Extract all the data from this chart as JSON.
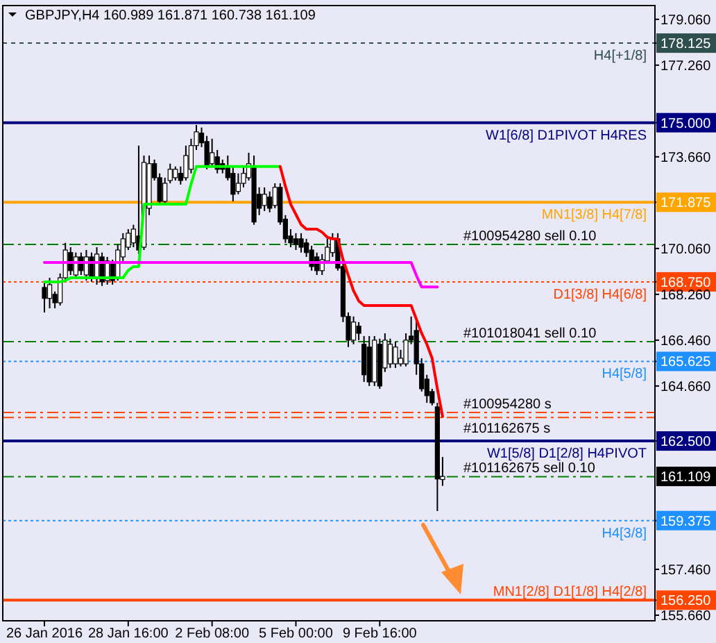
{
  "chart_data": {
    "type": "candlestick",
    "title": "GBPJPY,H4  160.989 161.871 160.738 161.109",
    "categories": [
      "26 Jan 2016",
      null,
      null,
      null,
      null,
      null,
      null,
      null,
      null,
      null,
      null,
      null,
      null,
      null,
      null,
      null,
      "28 Jan 16:00",
      null,
      null,
      null,
      null,
      null,
      null,
      null,
      null,
      null,
      null,
      null,
      null,
      null,
      null,
      null,
      "2 Feb 08:00",
      null,
      null,
      null,
      null,
      null,
      null,
      null,
      null,
      null,
      null,
      null,
      null,
      null,
      null,
      null,
      "5 Feb 00:00",
      null,
      null,
      null,
      null,
      null,
      null,
      null,
      null,
      null,
      null,
      null,
      null,
      null,
      null,
      null,
      "9 Feb 16:00",
      null,
      null,
      null,
      null,
      null,
      null,
      null,
      null,
      null,
      null,
      null,
      null,
      null,
      null,
      null,
      null,
      null,
      null,
      null,
      null,
      null,
      null,
      null,
      null,
      null,
      null,
      null,
      null,
      null,
      null,
      null,
      null,
      null,
      null,
      null,
      null,
      null,
      null,
      null,
      null,
      null,
      null,
      null,
      null,
      null,
      null,
      null,
      null,
      null,
      null,
      null,
      null
    ],
    "ohlc": [
      [
        168.53,
        168.75,
        167.55,
        168.1
      ],
      [
        168.1,
        168.91,
        167.71,
        168.64
      ],
      [
        168.26,
        168.37,
        167.71,
        167.93
      ],
      [
        167.93,
        169.08,
        167.82,
        168.91
      ],
      [
        168.91,
        170.28,
        168.8,
        170.0
      ],
      [
        169.9,
        170.11,
        169.02,
        169.19
      ],
      [
        169.02,
        169.9,
        168.91,
        169.73
      ],
      [
        169.73,
        169.9,
        169.02,
        169.19
      ],
      [
        169.02,
        170.0,
        168.8,
        169.73
      ],
      [
        169.73,
        169.9,
        168.75,
        168.91
      ],
      [
        168.91,
        170.11,
        168.64,
        169.84
      ],
      [
        169.73,
        169.9,
        168.59,
        168.75
      ],
      [
        168.8,
        169.73,
        168.64,
        169.57
      ],
      [
        169.46,
        169.62,
        168.64,
        168.8
      ],
      [
        168.91,
        170.22,
        168.8,
        170.0
      ],
      [
        169.73,
        170.66,
        169.57,
        170.44
      ],
      [
        170.11,
        170.82,
        170.0,
        170.66
      ],
      [
        170.28,
        170.99,
        170.11,
        170.82
      ],
      [
        170.55,
        174.1,
        169.84,
        170.0
      ],
      [
        170.11,
        173.71,
        170.0,
        173.44
      ],
      [
        171.64,
        173.71,
        171.37,
        173.39
      ],
      [
        173.39,
        173.55,
        172.73,
        172.84
      ],
      [
        172.84,
        173.01,
        171.75,
        171.91
      ],
      [
        171.91,
        172.84,
        171.75,
        172.62
      ],
      [
        172.73,
        173.39,
        172.62,
        173.17
      ],
      [
        172.84,
        173.28,
        172.73,
        173.17
      ],
      [
        173.01,
        173.28,
        172.57,
        172.73
      ],
      [
        172.84,
        174.1,
        172.73,
        173.71
      ],
      [
        173.17,
        174.37,
        173.01,
        174.1
      ],
      [
        174.1,
        174.91,
        173.93,
        174.64
      ],
      [
        174.59,
        174.81,
        174.04,
        174.21
      ],
      [
        174.26,
        174.48,
        173.17,
        173.28
      ],
      [
        173.39,
        174.37,
        173.28,
        173.82
      ],
      [
        173.66,
        173.93,
        173.01,
        173.17
      ],
      [
        173.39,
        173.55,
        173.01,
        173.17
      ],
      [
        173.28,
        173.71,
        172.73,
        172.84
      ],
      [
        173.01,
        173.28,
        171.91,
        172.19
      ],
      [
        172.3,
        173.01,
        172.19,
        172.62
      ],
      [
        172.62,
        173.28,
        172.46,
        173.01
      ],
      [
        172.84,
        173.82,
        172.73,
        173.39
      ],
      [
        173.28,
        173.71,
        170.99,
        171.1
      ],
      [
        172.19,
        172.46,
        171.37,
        171.64
      ],
      [
        171.75,
        172.46,
        171.53,
        172.19
      ],
      [
        172.08,
        172.3,
        171.48,
        171.64
      ],
      [
        171.75,
        172.62,
        171.64,
        172.46
      ],
      [
        172.46,
        172.62,
        170.99,
        171.1
      ],
      [
        171.21,
        171.37,
        170.28,
        170.44
      ],
      [
        170.55,
        170.82,
        170.11,
        170.28
      ],
      [
        170.44,
        170.66,
        170.0,
        170.22
      ],
      [
        170.44,
        170.66,
        169.9,
        170.11
      ],
      [
        170.28,
        170.44,
        169.73,
        169.9
      ],
      [
        170.0,
        170.17,
        169.19,
        169.35
      ],
      [
        169.73,
        169.9,
        169.02,
        169.19
      ],
      [
        169.19,
        169.84,
        169.02,
        169.62
      ],
      [
        169.57,
        170.44,
        169.46,
        170.11
      ],
      [
        169.9,
        170.66,
        169.73,
        170.44
      ],
      [
        170.44,
        170.66,
        169.19,
        169.29
      ],
      [
        169.35,
        169.46,
        167.17,
        167.39
      ],
      [
        167.39,
        167.55,
        166.19,
        166.46
      ],
      [
        166.46,
        167.39,
        166.3,
        167.17
      ],
      [
        167.01,
        167.17,
        166.46,
        166.73
      ],
      [
        166.3,
        166.62,
        164.82,
        165.1
      ],
      [
        166.19,
        166.62,
        164.66,
        164.82
      ],
      [
        164.82,
        166.62,
        164.66,
        166.46
      ],
      [
        166.3,
        166.52,
        164.55,
        164.66
      ],
      [
        165.37,
        166.73,
        165.21,
        166.46
      ],
      [
        165.53,
        166.52,
        165.37,
        166.3
      ],
      [
        165.53,
        166.41,
        165.37,
        166.19
      ],
      [
        165.53,
        166.08,
        165.43,
        165.75
      ],
      [
        165.53,
        166.73,
        165.43,
        166.46
      ],
      [
        166.62,
        167.39,
        166.3,
        166.46
      ],
      [
        166.84,
        167.28,
        165.1,
        165.53
      ],
      [
        165.53,
        165.75,
        164.44,
        164.55
      ],
      [
        164.93,
        165.1,
        164.0,
        164.28
      ],
      [
        164.44,
        164.55,
        163.9,
        164.0
      ],
      [
        163.84,
        164.0,
        159.75,
        161.01
      ],
      [
        160.989,
        161.871,
        160.738,
        161.109
      ],
      null,
      null,
      null,
      null,
      null,
      null,
      null,
      null,
      null,
      null,
      null,
      null,
      null,
      null,
      null,
      null,
      null,
      null,
      null,
      null,
      null,
      null,
      null,
      null,
      null,
      null,
      null,
      null,
      null,
      null,
      null,
      null,
      null,
      null,
      null,
      null,
      null,
      null,
      null,
      null
    ],
    "series": [
      {
        "type": "line",
        "color": "#00ff00",
        "values": [
          168.75,
          168.75,
          168.75,
          168.75,
          168.8,
          168.91,
          168.91,
          168.91,
          168.91,
          168.91,
          168.91,
          168.91,
          168.91,
          168.91,
          168.91,
          168.91,
          169.2,
          169.35,
          169.35,
          171.8,
          171.8,
          171.8,
          171.8,
          171.8,
          171.8,
          171.8,
          171.8,
          171.8,
          172.6,
          173.28,
          173.28,
          173.28,
          173.28,
          173.28,
          173.28,
          173.28,
          173.28,
          173.28,
          173.28,
          173.28,
          173.28,
          173.28,
          173.28,
          173.28,
          173.28,
          173.28,
          null,
          null,
          null,
          null,
          null,
          null,
          null,
          null,
          null,
          null,
          null,
          null,
          null,
          null,
          null,
          null,
          null,
          null,
          null,
          null,
          null,
          null,
          null,
          null,
          null,
          null,
          null,
          null,
          null,
          null,
          null,
          null,
          null,
          null,
          null,
          null,
          null,
          null,
          null,
          null,
          null,
          null,
          null,
          null,
          null,
          null,
          null,
          null,
          null,
          null,
          null,
          null,
          null,
          null,
          null,
          null,
          null,
          null,
          null,
          null,
          null,
          null,
          null,
          null,
          null,
          null,
          null,
          null,
          null,
          null,
          null
        ]
      },
      {
        "type": "line",
        "color": "#ff0000",
        "values": [
          null,
          null,
          null,
          null,
          null,
          null,
          null,
          null,
          null,
          null,
          null,
          null,
          null,
          null,
          null,
          null,
          null,
          null,
          null,
          null,
          null,
          null,
          null,
          null,
          null,
          null,
          null,
          null,
          null,
          null,
          null,
          null,
          null,
          null,
          null,
          null,
          null,
          null,
          null,
          null,
          null,
          null,
          null,
          null,
          null,
          173.28,
          172.5,
          171.8,
          171.4,
          171.0,
          170.82,
          170.82,
          170.82,
          170.7,
          170.5,
          170.44,
          170.44,
          169.62,
          169.0,
          168.4,
          168.0,
          167.82,
          167.82,
          167.82,
          167.82,
          167.82,
          167.82,
          167.82,
          167.82,
          167.82,
          167.82,
          167.28,
          166.73,
          166.3,
          165.75,
          164.55,
          163.46,
          null,
          null,
          null,
          null,
          null,
          null,
          null,
          null,
          null,
          null,
          null,
          null,
          null,
          null,
          null,
          null,
          null,
          null,
          null,
          null,
          null,
          null,
          null,
          null,
          null,
          null,
          null,
          null,
          null,
          null,
          null,
          null,
          null,
          null,
          null,
          null,
          null,
          null,
          null,
          null
        ]
      },
      {
        "type": "line",
        "color": "#ff00ff",
        "values": [
          169.51,
          169.51,
          169.51,
          169.51,
          169.51,
          169.51,
          169.51,
          169.51,
          169.51,
          169.51,
          169.51,
          169.51,
          169.51,
          169.51,
          169.51,
          169.51,
          169.51,
          169.51,
          169.51,
          169.51,
          169.51,
          169.51,
          169.51,
          169.51,
          169.51,
          169.51,
          169.51,
          169.51,
          169.51,
          169.51,
          169.51,
          169.51,
          169.51,
          169.51,
          169.51,
          169.51,
          169.51,
          169.51,
          169.51,
          169.51,
          169.51,
          169.51,
          169.51,
          169.51,
          169.51,
          169.51,
          169.51,
          169.51,
          169.51,
          169.51,
          169.51,
          169.51,
          169.51,
          169.51,
          169.51,
          169.51,
          169.51,
          169.51,
          169.51,
          169.51,
          169.51,
          169.51,
          169.51,
          169.51,
          169.51,
          169.51,
          169.51,
          169.51,
          169.51,
          169.51,
          169.51,
          169.0,
          168.55,
          168.55,
          168.55,
          168.55,
          null,
          null,
          null,
          null,
          null,
          null,
          null,
          null,
          null,
          null,
          null,
          null,
          null,
          null,
          null,
          null,
          null,
          null,
          null,
          null,
          null,
          null,
          null,
          null,
          null,
          null,
          null,
          null,
          null,
          null,
          null,
          null,
          null,
          null,
          null,
          null,
          null,
          null,
          null,
          null,
          null
        ]
      }
    ],
    "ylim": [
      155.44,
      179.6
    ],
    "yticks": [
      {
        "value": 179.06,
        "label": "179.060"
      },
      {
        "value": 178.125,
        "label": "178.125"
      },
      {
        "value": 177.26,
        "label": "177.260"
      },
      {
        "value": 175.0,
        "label": "175.000"
      },
      {
        "value": 173.66,
        "label": "173.660"
      },
      {
        "value": 171.875,
        "label": "171.875"
      },
      {
        "value": 170.06,
        "label": "170.060"
      },
      {
        "value": 168.75,
        "label": "168.750"
      },
      {
        "value": 168.26,
        "label": "168.260"
      },
      {
        "value": 166.46,
        "label": "166.460"
      },
      {
        "value": 165.625,
        "label": "165.625"
      },
      {
        "value": 164.66,
        "label": "164.660"
      },
      {
        "value": 162.5,
        "label": "162.500"
      },
      {
        "value": 159.375,
        "label": "159.375"
      },
      {
        "value": 157.46,
        "label": "157.460"
      },
      {
        "value": 156.25,
        "label": "156.250"
      },
      {
        "value": 155.66,
        "label": "155.660"
      }
    ],
    "ref_lines": [
      {
        "axis": "y",
        "value": 178.125,
        "label": "H4[+1/8]",
        "color": "#2f4f4f",
        "line_style": "dashed"
      },
      {
        "axis": "y",
        "value": 175.0,
        "label": "W1[6/8] D1PIVOT H4RES",
        "color": "#000080",
        "line_style": "solid"
      },
      {
        "axis": "y",
        "value": 171.875,
        "label": "MN1[3/8] H4[7/8]",
        "color": "#ffa500",
        "line_style": "solid"
      },
      {
        "axis": "y",
        "value": 170.22,
        "label": "#100954280 sell 0.10",
        "color": "#008000",
        "line_style": "dashdot"
      },
      {
        "axis": "y",
        "value": 168.75,
        "label": "D1[3/8] H4[6/8]",
        "color": "#ff4500",
        "line_style": "dotted"
      },
      {
        "axis": "y",
        "value": 166.4,
        "label": "#101018041 sell 0.10",
        "color": "#008000",
        "line_style": "dashdot"
      },
      {
        "axis": "y",
        "value": 165.625,
        "label": "H4[5/8]",
        "color": "#1e90ff",
        "line_style": "dotted"
      },
      {
        "axis": "y",
        "value": 163.62,
        "label": "#100954280 s",
        "color": "#ff4500",
        "line_style": "dashdot"
      },
      {
        "axis": "y",
        "value": 163.42,
        "label": "#101162675 s",
        "color": "#ff4500",
        "line_style": "dashdot"
      },
      {
        "axis": "y",
        "value": 162.5,
        "label": "W1[5/8] D1[2/8] H4PIVOT",
        "color": "#000080",
        "line_style": "solid"
      },
      {
        "axis": "y",
        "value": 161.1,
        "label": "#101162675 sell 0.10",
        "color": "#008000",
        "line_style": "dashdot"
      },
      {
        "axis": "y",
        "value": 159.375,
        "label": "H4[3/8]",
        "color": "#1e90ff",
        "line_style": "dotted"
      },
      {
        "axis": "y",
        "value": 156.25,
        "label": "MN1[2/8] D1[1/8] H4[2/8]",
        "color": "#ff4500",
        "line_style": "solid"
      }
    ],
    "annotations": [
      "161.109"
    ]
  }
}
